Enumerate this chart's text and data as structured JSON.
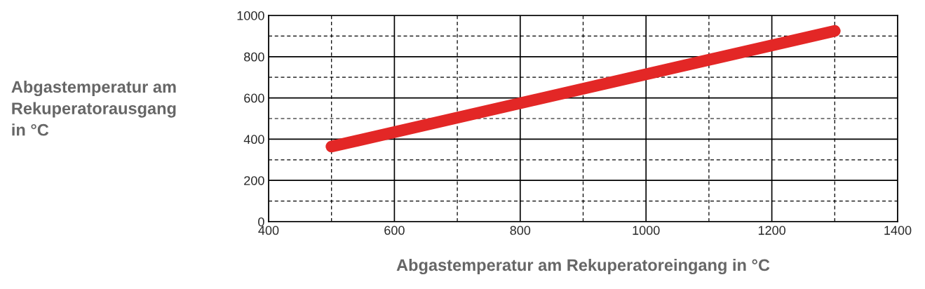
{
  "chart_data": {
    "type": "line",
    "xlabel": "Abgastemperatur am Rekuperatoreingang in °C",
    "ylabel": "Abgastemperatur am\nRekuperatorausgang\nin °C",
    "series": [
      {
        "color": "#e32726",
        "x": [
          500,
          1300
        ],
        "values": [
          364,
          925
        ]
      }
    ],
    "xlim": [
      400,
      1400
    ],
    "xticks": [
      400,
      {
        "value": 500,
        "label": null
      },
      600,
      {
        "value": 700,
        "label": null
      },
      800,
      {
        "value": 900,
        "label": null
      },
      1000,
      {
        "value": 1100,
        "label": null
      },
      1200,
      {
        "value": 1300,
        "label": null
      },
      1400
    ],
    "ylim": [
      0,
      1000
    ],
    "yticks": [
      0,
      {
        "value": 100,
        "label": null
      },
      200,
      {
        "value": 300,
        "label": null
      },
      400,
      {
        "value": 500,
        "label": null
      },
      600,
      {
        "value": 700,
        "label": null
      },
      800,
      {
        "value": 900,
        "label": null
      },
      1000
    ],
    "grid": true,
    "line_style": "solid"
  }
}
